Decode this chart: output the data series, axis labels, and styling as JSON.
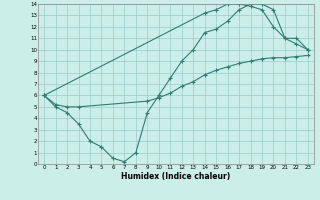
{
  "xlabel": "Humidex (Indice chaleur)",
  "bg_color": "#cceee8",
  "grid_color": "#99cccc",
  "line_color": "#2d7d74",
  "xlim": [
    -0.5,
    23.5
  ],
  "ylim": [
    0,
    14
  ],
  "xticks": [
    0,
    1,
    2,
    3,
    4,
    5,
    6,
    7,
    8,
    9,
    10,
    11,
    12,
    13,
    14,
    15,
    16,
    17,
    18,
    19,
    20,
    21,
    22,
    23
  ],
  "yticks": [
    0,
    1,
    2,
    3,
    4,
    5,
    6,
    7,
    8,
    9,
    10,
    11,
    12,
    13,
    14
  ],
  "line1_x": [
    0,
    1,
    2,
    3,
    4,
    5,
    6,
    7,
    8,
    9,
    10,
    11,
    12,
    13,
    14,
    15,
    16,
    17,
    18,
    19,
    20,
    21,
    22,
    23
  ],
  "line1_y": [
    6.0,
    5.0,
    4.5,
    3.5,
    2.0,
    1.5,
    0.5,
    0.2,
    1.0,
    4.5,
    6.0,
    7.5,
    9.0,
    10.0,
    11.5,
    11.8,
    12.5,
    13.5,
    14.0,
    14.0,
    13.5,
    11.0,
    10.5,
    10.0
  ],
  "line2_x": [
    0,
    1,
    2,
    3,
    9,
    10,
    11,
    12,
    13,
    14,
    15,
    16,
    17,
    18,
    19,
    20,
    21,
    22,
    23
  ],
  "line2_y": [
    6.0,
    5.2,
    5.0,
    5.0,
    5.5,
    5.8,
    6.2,
    6.8,
    7.2,
    7.8,
    8.2,
    8.5,
    8.8,
    9.0,
    9.2,
    9.3,
    9.3,
    9.4,
    9.5
  ],
  "line3_x": [
    0,
    14,
    15,
    16,
    17,
    18,
    19,
    20,
    21,
    22,
    23
  ],
  "line3_y": [
    6.0,
    13.2,
    13.5,
    14.0,
    14.0,
    13.8,
    13.5,
    12.0,
    11.0,
    11.0,
    10.0
  ]
}
